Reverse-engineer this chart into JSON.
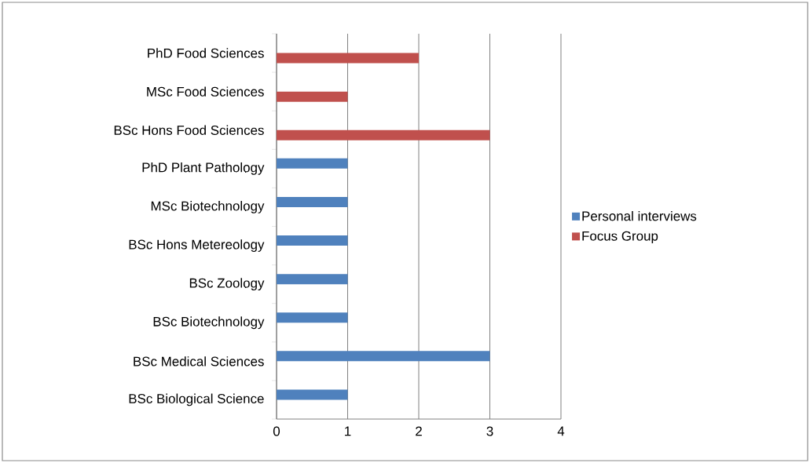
{
  "chart_data": {
    "type": "bar",
    "orientation": "horizontal",
    "categories": [
      "PhD Food Sciences",
      "MSc Food Sciences",
      "BSc Hons Food Sciences",
      "PhD Plant Pathology",
      "MSc Biotechnology",
      "BSc Hons Metereology",
      "BSc Zoology",
      "BSc Biotechnology",
      "BSc Medical Sciences",
      "BSc Biological Science"
    ],
    "series": [
      {
        "name": "Personal interviews",
        "color": "#4f81bd",
        "values": [
          null,
          null,
          null,
          1,
          1,
          1,
          1,
          1,
          3,
          1
        ]
      },
      {
        "name": "Focus Group",
        "color": "#c0504d",
        "values": [
          2,
          1,
          3,
          null,
          null,
          null,
          null,
          null,
          null,
          null
        ]
      }
    ],
    "xlim": [
      0,
      4
    ],
    "xticks": [
      0,
      1,
      2,
      3,
      4
    ],
    "grid": "x",
    "legend": "right"
  }
}
